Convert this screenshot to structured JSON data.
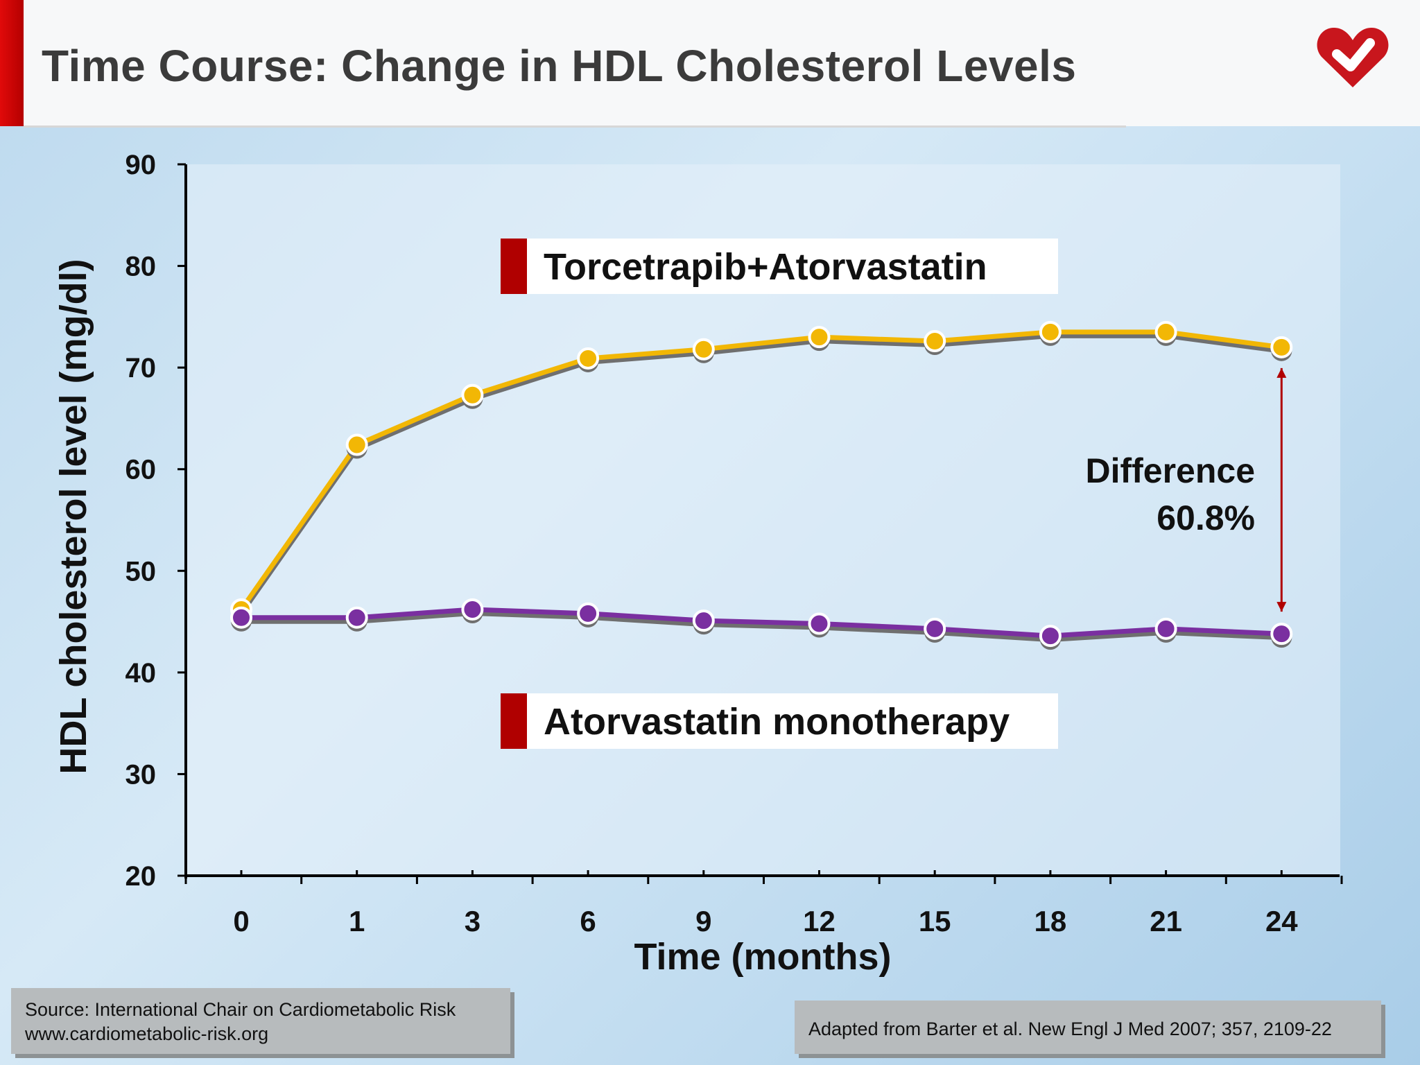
{
  "header": {
    "title": "Time Course: Change in HDL Cholesterol Levels"
  },
  "colors": {
    "accent_red": "#b00000",
    "series_torcetrapib": "#f2b705",
    "series_atorvastatin": "#7a2fa0"
  },
  "chart_data": {
    "type": "line",
    "title": "",
    "xlabel": "Time (months)",
    "ylabel": "HDL cholesterol  level (mg/dl)",
    "x": [
      0,
      1,
      3,
      6,
      9,
      12,
      15,
      18,
      21,
      24
    ],
    "x_tick_labels": [
      "0",
      "1",
      "3",
      "6",
      "9",
      "12",
      "15",
      "18",
      "21",
      "24"
    ],
    "ylim": [
      20,
      90
    ],
    "y_ticks": [
      20,
      30,
      40,
      50,
      60,
      70,
      80,
      90
    ],
    "grid": false,
    "series": [
      {
        "name": "Torcetrapib+Atorvastatin",
        "color": "#f2b705",
        "values": [
          46.2,
          62.4,
          67.3,
          70.9,
          71.8,
          73.0,
          72.6,
          73.5,
          73.5,
          72.0
        ]
      },
      {
        "name": "Atorvastatin monotherapy",
        "color": "#7a2fa0",
        "values": [
          45.4,
          45.4,
          46.2,
          45.8,
          45.1,
          44.8,
          44.3,
          43.6,
          44.3,
          43.8
        ]
      }
    ],
    "annotation": {
      "line1": "Difference",
      "line2": "60.8%"
    }
  },
  "legend": {
    "top": "Torcetrapib+Atorvastatin",
    "bottom": "Atorvastatin monotherapy"
  },
  "footer": {
    "source_line1": "Source: International Chair on Cardiometabolic Risk",
    "source_line2": "www.cardiometabolic-risk.org",
    "adapted": "Adapted from Barter et al. New Engl J Med 2007; 357, 2109-22"
  }
}
